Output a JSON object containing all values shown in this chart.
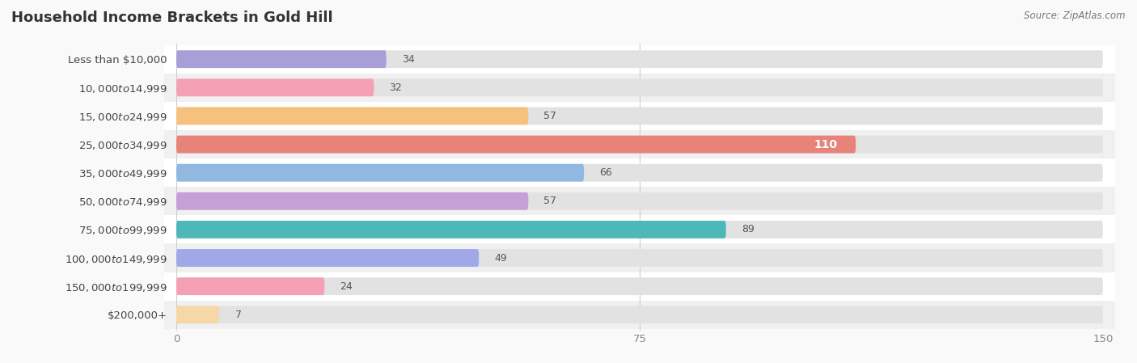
{
  "title": "Household Income Brackets in Gold Hill",
  "source": "Source: ZipAtlas.com",
  "categories": [
    "Less than $10,000",
    "$10,000 to $14,999",
    "$15,000 to $24,999",
    "$25,000 to $34,999",
    "$35,000 to $49,999",
    "$50,000 to $74,999",
    "$75,000 to $99,999",
    "$100,000 to $149,999",
    "$150,000 to $199,999",
    "$200,000+"
  ],
  "values": [
    34,
    32,
    57,
    110,
    66,
    57,
    89,
    49,
    24,
    7
  ],
  "bar_colors": [
    "#a89fd8",
    "#f4a0b5",
    "#f6c17c",
    "#e8837a",
    "#90b8e0",
    "#c49fd8",
    "#4db8b8",
    "#a0a8e8",
    "#f4a0b5",
    "#f6d8a8"
  ],
  "xlim": [
    0,
    150
  ],
  "xticks": [
    0,
    75,
    150
  ],
  "bg_color": "#f9f9f9",
  "row_colors": [
    "#ffffff",
    "#f0f0f0"
  ],
  "bar_bg_color": "#e2e2e2",
  "title_fontsize": 13,
  "label_fontsize": 9.5,
  "value_fontsize": 9,
  "value_color_inside": "#ffffff",
  "value_color_outside": "#555555",
  "inside_threshold": 110
}
